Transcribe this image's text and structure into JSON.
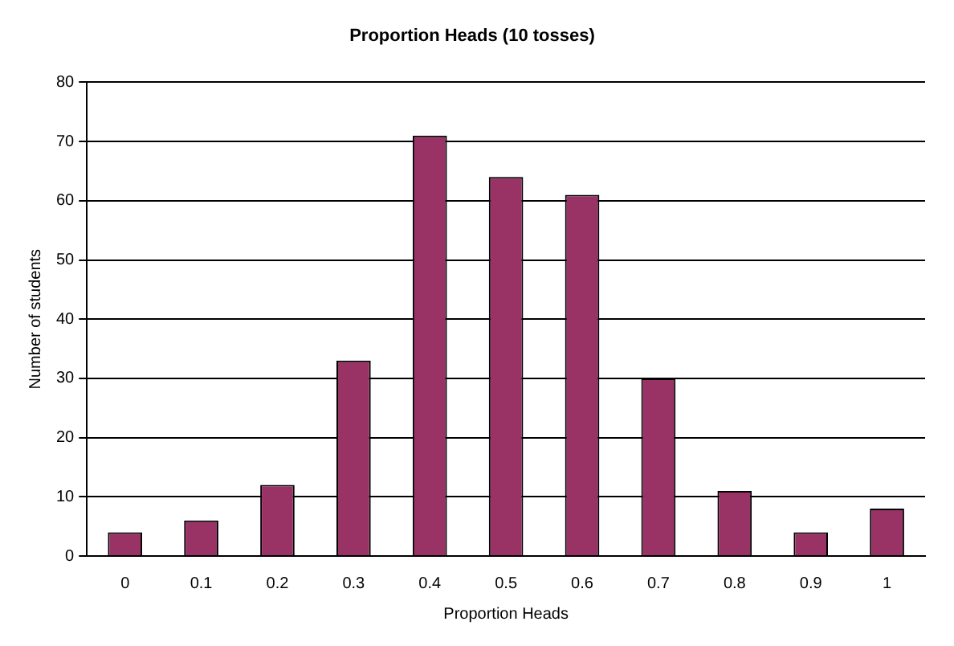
{
  "chart_data": {
    "type": "bar",
    "title": "Proportion Heads (10 tosses)",
    "xlabel": "Proportion Heads",
    "ylabel": "Number of students",
    "categories": [
      "0",
      "0.1",
      "0.2",
      "0.3",
      "0.4",
      "0.5",
      "0.6",
      "0.7",
      "0.8",
      "0.9",
      "1"
    ],
    "values": [
      4,
      6,
      12,
      33,
      71,
      64,
      61,
      30,
      11,
      4,
      8
    ],
    "color": "#993366",
    "ylim": [
      0,
      80
    ],
    "yticks": [
      0,
      10,
      20,
      30,
      40,
      50,
      60,
      70,
      80
    ],
    "grid": "y"
  }
}
